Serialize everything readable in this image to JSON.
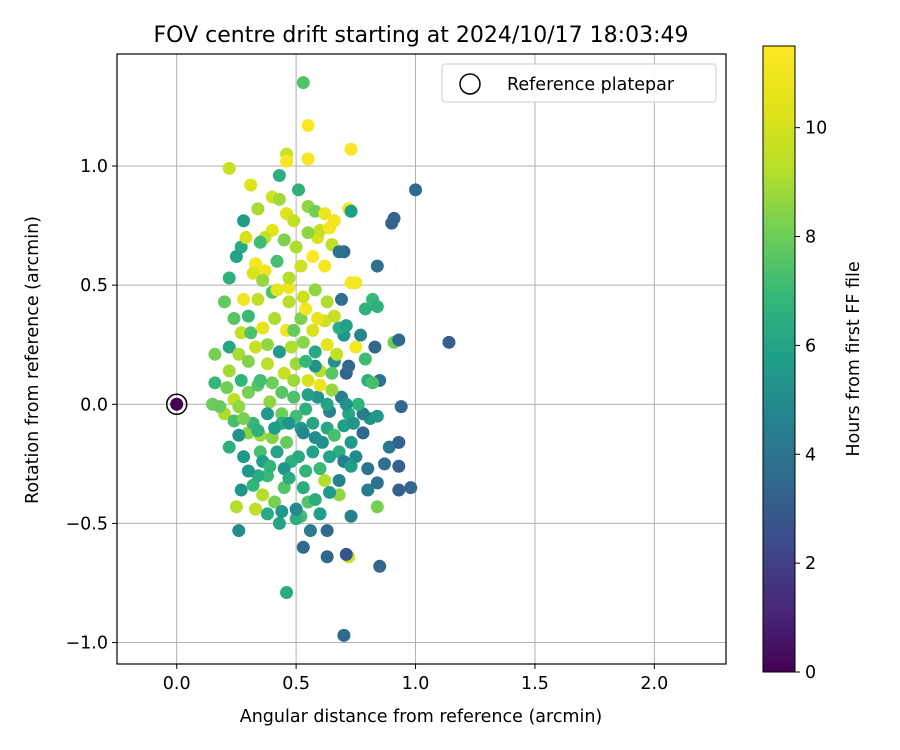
{
  "chart_data": {
    "type": "scatter",
    "title": "FOV centre drift starting at 2024/10/17 18:03:49",
    "xlabel": "Angular distance from reference (arcmin)",
    "ylabel": "Rotation from reference (arcmin)",
    "xlim": [
      -0.25,
      2.3
    ],
    "ylim": [
      -1.09,
      1.47
    ],
    "xticks": [
      {
        "value": 0.0,
        "label": "0.0"
      },
      {
        "value": 0.5,
        "label": "0.5"
      },
      {
        "value": 1.0,
        "label": "1.0"
      },
      {
        "value": 1.5,
        "label": "1.5"
      },
      {
        "value": 2.0,
        "label": "2.0"
      }
    ],
    "yticks": [
      {
        "value": -1.0,
        "label": "−1.0"
      },
      {
        "value": -0.5,
        "label": "−0.5"
      },
      {
        "value": 0.0,
        "label": "0.0"
      },
      {
        "value": 0.5,
        "label": "0.5"
      },
      {
        "value": 1.0,
        "label": "1.0"
      }
    ],
    "grid": true,
    "legend": {
      "position": "top-right",
      "label": "Reference platepar"
    },
    "reference_point": {
      "x": 0.0,
      "y": 0.0,
      "hours": 0
    },
    "colorbar": {
      "label": "Hours from first FF file",
      "colormap": "viridis",
      "range": [
        0,
        11.5
      ],
      "ticks": [
        {
          "value": 0,
          "label": "0"
        },
        {
          "value": 2,
          "label": "2"
        },
        {
          "value": 4,
          "label": "4"
        },
        {
          "value": 6,
          "label": "6"
        },
        {
          "value": 8,
          "label": "8"
        },
        {
          "value": 10,
          "label": "10"
        }
      ]
    },
    "points": [
      [
        0.7,
        -0.97,
        3.6
      ],
      [
        0.46,
        -0.79,
        6.3
      ],
      [
        0.85,
        -0.68,
        3.4
      ],
      [
        0.72,
        -0.64,
        9.8
      ],
      [
        0.71,
        -0.63,
        2.7
      ],
      [
        0.63,
        -0.64,
        3.4
      ],
      [
        0.53,
        -0.6,
        3.5
      ],
      [
        0.26,
        -0.53,
        5.0
      ],
      [
        0.63,
        -0.53,
        3.6
      ],
      [
        0.56,
        -0.53,
        4.3
      ],
      [
        0.73,
        -0.47,
        4.5
      ],
      [
        0.84,
        -0.43,
        8.2
      ],
      [
        0.25,
        -0.43,
        9.2
      ],
      [
        0.33,
        -0.44,
        9.5
      ],
      [
        0.52,
        -0.47,
        7.2
      ],
      [
        0.43,
        -0.5,
        6.0
      ],
      [
        0.5,
        -0.48,
        6.5
      ],
      [
        0.98,
        -0.35,
        3.4
      ],
      [
        0.93,
        -0.36,
        3.2
      ],
      [
        0.84,
        -0.33,
        3.9
      ],
      [
        0.8,
        -0.27,
        4.0
      ],
      [
        0.93,
        -0.26,
        3.2
      ],
      [
        0.87,
        -0.25,
        3.8
      ],
      [
        0.89,
        -0.18,
        4.2
      ],
      [
        0.93,
        -0.16,
        3.2
      ],
      [
        0.81,
        -0.06,
        5.2
      ],
      [
        0.78,
        -0.04,
        4.3
      ],
      [
        0.84,
        -0.05,
        5.5
      ],
      [
        0.94,
        -0.01,
        3.4
      ],
      [
        0.68,
        -0.38,
        8.6
      ],
      [
        0.62,
        -0.32,
        9.2
      ],
      [
        0.55,
        -0.41,
        7.5
      ],
      [
        0.45,
        -0.35,
        7.5
      ],
      [
        0.38,
        -0.3,
        7.0
      ],
      [
        0.32,
        -0.34,
        6.8
      ],
      [
        0.35,
        -0.2,
        7.3
      ],
      [
        0.28,
        -0.22,
        5.5
      ],
      [
        0.22,
        -0.18,
        6.5
      ],
      [
        0.3,
        -0.12,
        8.5
      ],
      [
        0.35,
        -0.13,
        8.8
      ],
      [
        0.4,
        -0.14,
        8.4
      ],
      [
        0.46,
        -0.16,
        7.9
      ],
      [
        0.52,
        -0.1,
        5.6
      ],
      [
        0.58,
        -0.14,
        5.0
      ],
      [
        0.63,
        -0.1,
        6.2
      ],
      [
        0.68,
        -0.2,
        6.5
      ],
      [
        0.73,
        -0.16,
        5.5
      ],
      [
        0.75,
        -0.22,
        4.9
      ],
      [
        0.7,
        -0.24,
        4.4
      ],
      [
        0.6,
        -0.27,
        7.0
      ],
      [
        0.54,
        -0.28,
        6.8
      ],
      [
        0.48,
        -0.24,
        6.6
      ],
      [
        0.42,
        -0.2,
        6.0
      ],
      [
        0.36,
        -0.24,
        5.8
      ],
      [
        0.26,
        -0.13,
        5.3
      ],
      [
        0.2,
        -0.04,
        9.1
      ],
      [
        0.15,
        0.0,
        8.0
      ],
      [
        0.24,
        0.02,
        9.5
      ],
      [
        0.3,
        0.05,
        8.2
      ],
      [
        0.34,
        0.08,
        7.6
      ],
      [
        0.39,
        0.01,
        8.6
      ],
      [
        0.44,
        -0.04,
        8.0
      ],
      [
        0.49,
        0.03,
        7.4
      ],
      [
        0.54,
        -0.02,
        6.6
      ],
      [
        0.59,
        0.03,
        5.4
      ],
      [
        0.64,
        -0.03,
        4.7
      ],
      [
        0.69,
        0.03,
        4.4
      ],
      [
        0.72,
        -0.04,
        6.1
      ],
      [
        0.76,
        0.0,
        6.7
      ],
      [
        0.85,
        0.1,
        3.9
      ],
      [
        0.8,
        0.1,
        6.5
      ],
      [
        0.82,
        0.09,
        7.3
      ],
      [
        0.71,
        0.13,
        3.3
      ],
      [
        0.66,
        0.18,
        5.2
      ],
      [
        0.6,
        0.14,
        9.3
      ],
      [
        0.55,
        0.1,
        10.2
      ],
      [
        0.5,
        0.17,
        8.8
      ],
      [
        0.45,
        0.13,
        9.7
      ],
      [
        0.4,
        0.09,
        8.0
      ],
      [
        0.35,
        0.1,
        7.2
      ],
      [
        0.27,
        0.1,
        6.8
      ],
      [
        0.22,
        0.14,
        8.9
      ],
      [
        0.16,
        0.09,
        6.9
      ],
      [
        0.16,
        0.21,
        8.2
      ],
      [
        0.22,
        0.24,
        6.1
      ],
      [
        0.26,
        0.21,
        9.0
      ],
      [
        0.3,
        0.18,
        8.4
      ],
      [
        0.38,
        0.17,
        9.4
      ],
      [
        0.43,
        0.22,
        5.6
      ],
      [
        0.48,
        0.24,
        9.1
      ],
      [
        0.53,
        0.26,
        8.5
      ],
      [
        0.58,
        0.22,
        6.2
      ],
      [
        0.63,
        0.25,
        10.6
      ],
      [
        0.7,
        0.29,
        5.4
      ],
      [
        0.75,
        0.24,
        11.2
      ],
      [
        0.83,
        0.24,
        3.5
      ],
      [
        0.91,
        0.26,
        8.0
      ],
      [
        0.93,
        0.27,
        3.5
      ],
      [
        1.14,
        0.26,
        3.1
      ],
      [
        0.79,
        0.19,
        7.1
      ],
      [
        0.68,
        0.32,
        6.5
      ],
      [
        0.62,
        0.35,
        9.9
      ],
      [
        0.57,
        0.31,
        10.2
      ],
      [
        0.52,
        0.36,
        8.3
      ],
      [
        0.46,
        0.31,
        11.0
      ],
      [
        0.41,
        0.36,
        9.1
      ],
      [
        0.36,
        0.32,
        10.6
      ],
      [
        0.3,
        0.37,
        7.0
      ],
      [
        0.24,
        0.36,
        7.6
      ],
      [
        0.2,
        0.43,
        7.8
      ],
      [
        0.28,
        0.44,
        11.0
      ],
      [
        0.34,
        0.44,
        9.5
      ],
      [
        0.4,
        0.47,
        7.4
      ],
      [
        0.47,
        0.49,
        10.9
      ],
      [
        0.53,
        0.45,
        9.8
      ],
      [
        0.58,
        0.48,
        8.6
      ],
      [
        0.63,
        0.43,
        9.1
      ],
      [
        0.69,
        0.44,
        3.7
      ],
      [
        0.73,
        0.51,
        11.2
      ],
      [
        0.79,
        0.4,
        6.6
      ],
      [
        0.82,
        0.44,
        6.9
      ],
      [
        0.84,
        0.41,
        6.6
      ],
      [
        0.84,
        0.58,
        3.8
      ],
      [
        0.7,
        0.64,
        3.5
      ],
      [
        0.75,
        0.51,
        11.2
      ],
      [
        0.62,
        0.58,
        11.3
      ],
      [
        0.57,
        0.62,
        11.5
      ],
      [
        0.52,
        0.58,
        9.9
      ],
      [
        0.47,
        0.53,
        9.2
      ],
      [
        0.42,
        0.6,
        7.3
      ],
      [
        0.37,
        0.56,
        11.0
      ],
      [
        0.33,
        0.59,
        11.2
      ],
      [
        0.27,
        0.66,
        6.2
      ],
      [
        0.22,
        0.53,
        6.6
      ],
      [
        0.22,
        0.99,
        9.7
      ],
      [
        0.31,
        0.92,
        10.3
      ],
      [
        0.28,
        0.77,
        5.7
      ],
      [
        0.34,
        0.82,
        9.0
      ],
      [
        0.4,
        0.87,
        9.9
      ],
      [
        0.43,
        0.86,
        8.9
      ],
      [
        0.46,
        0.8,
        10.3
      ],
      [
        0.49,
        0.77,
        9.6
      ],
      [
        0.51,
        0.9,
        6.6
      ],
      [
        0.55,
        0.83,
        8.6
      ],
      [
        0.58,
        0.81,
        8.1
      ],
      [
        0.62,
        0.8,
        10.9
      ],
      [
        0.66,
        0.77,
        11.1
      ],
      [
        0.72,
        0.82,
        11.3
      ],
      [
        0.73,
        0.81,
        5.8
      ],
      [
        0.9,
        0.76,
        3.3
      ],
      [
        0.91,
        0.78,
        3.3
      ],
      [
        1.0,
        0.9,
        3.6
      ],
      [
        0.46,
        1.05,
        9.8
      ],
      [
        0.46,
        1.02,
        11.3
      ],
      [
        0.55,
        1.03,
        11.3
      ],
      [
        0.73,
        1.07,
        11.3
      ],
      [
        0.55,
        1.17,
        11.5
      ],
      [
        0.53,
        1.35,
        7.5
      ],
      [
        0.43,
        0.96,
        6.5
      ],
      [
        0.59,
        0.7,
        10.2
      ],
      [
        0.65,
        0.67,
        9.5
      ],
      [
        0.68,
        0.64,
        4.0
      ],
      [
        0.6,
        0.73,
        9.7
      ],
      [
        0.64,
        0.74,
        11.3
      ],
      [
        0.55,
        0.72,
        8.6
      ],
      [
        0.5,
        0.66,
        9.1
      ],
      [
        0.45,
        0.69,
        8.3
      ],
      [
        0.4,
        0.73,
        10.5
      ],
      [
        0.37,
        0.7,
        9.6
      ],
      [
        0.29,
        0.7,
        10.1
      ],
      [
        0.35,
        0.68,
        7.1
      ],
      [
        0.25,
        0.62,
        6.0
      ],
      [
        0.32,
        0.55,
        10.2
      ],
      [
        0.36,
        0.52,
        8.7
      ],
      [
        0.42,
        0.48,
        10.6
      ],
      [
        0.47,
        0.43,
        9.3
      ],
      [
        0.54,
        0.4,
        11.0
      ],
      [
        0.59,
        0.36,
        10.7
      ],
      [
        0.66,
        0.37,
        9.7
      ],
      [
        0.71,
        0.33,
        5.9
      ],
      [
        0.77,
        0.29,
        4.8
      ],
      [
        0.71,
        0.0,
        5.3
      ],
      [
        0.65,
        0.06,
        8.7
      ],
      [
        0.6,
        0.08,
        10.9
      ],
      [
        0.55,
        0.04,
        5.9
      ],
      [
        0.5,
        -0.05,
        7.2
      ],
      [
        0.44,
        -0.08,
        6.3
      ],
      [
        0.38,
        -0.04,
        5.6
      ],
      [
        0.32,
        -0.08,
        6.9
      ],
      [
        0.26,
        -0.01,
        8.6
      ],
      [
        0.21,
        0.07,
        8.1
      ],
      [
        0.18,
        -0.01,
        7.9
      ],
      [
        0.24,
        -0.07,
        7.3
      ],
      [
        0.28,
        -0.06,
        8.2
      ],
      [
        0.34,
        -0.11,
        6.6
      ],
      [
        0.41,
        -0.1,
        5.7
      ],
      [
        0.47,
        -0.08,
        5.4
      ],
      [
        0.53,
        -0.12,
        4.8
      ],
      [
        0.57,
        -0.08,
        6.1
      ],
      [
        0.61,
        -0.16,
        5.1
      ],
      [
        0.66,
        -0.13,
        7.3
      ],
      [
        0.7,
        -0.09,
        5.8
      ],
      [
        0.74,
        -0.08,
        5.4
      ],
      [
        0.78,
        -0.12,
        3.5
      ],
      [
        0.64,
        -0.22,
        6.0
      ],
      [
        0.57,
        -0.2,
        5.9
      ],
      [
        0.51,
        -0.22,
        6.3
      ],
      [
        0.45,
        -0.27,
        5.4
      ],
      [
        0.39,
        -0.26,
        6.8
      ],
      [
        0.34,
        -0.3,
        6.4
      ],
      [
        0.3,
        -0.28,
        5.5
      ],
      [
        0.27,
        -0.36,
        5.4
      ],
      [
        0.36,
        -0.38,
        9.2
      ],
      [
        0.41,
        -0.41,
        8.2
      ],
      [
        0.47,
        -0.31,
        6.3
      ],
      [
        0.53,
        -0.35,
        6.4
      ],
      [
        0.58,
        -0.4,
        6.5
      ],
      [
        0.64,
        -0.37,
        5.6
      ],
      [
        0.68,
        -0.32,
        4.6
      ],
      [
        0.73,
        -0.26,
        5.8
      ],
      [
        0.8,
        -0.36,
        4.3
      ],
      [
        0.6,
        -0.46,
        5.8
      ],
      [
        0.5,
        -0.44,
        4.9
      ],
      [
        0.44,
        -0.45,
        5.5
      ],
      [
        0.38,
        -0.46,
        6.2
      ],
      [
        0.63,
        0.0,
        6.0
      ],
      [
        0.58,
        0.16,
        5.3
      ],
      [
        0.49,
        0.1,
        8.8
      ],
      [
        0.44,
        0.05,
        7.6
      ],
      [
        0.38,
        0.25,
        8.6
      ],
      [
        0.33,
        0.24,
        9.7
      ],
      [
        0.27,
        0.3,
        9.6
      ],
      [
        0.31,
        0.3,
        7.4
      ],
      [
        0.49,
        0.31,
        7.9
      ],
      [
        0.54,
        0.18,
        6.9
      ],
      [
        0.65,
        0.13,
        7.6
      ],
      [
        0.67,
        0.21,
        9.6
      ],
      [
        0.72,
        0.16,
        3.4
      ]
    ]
  }
}
